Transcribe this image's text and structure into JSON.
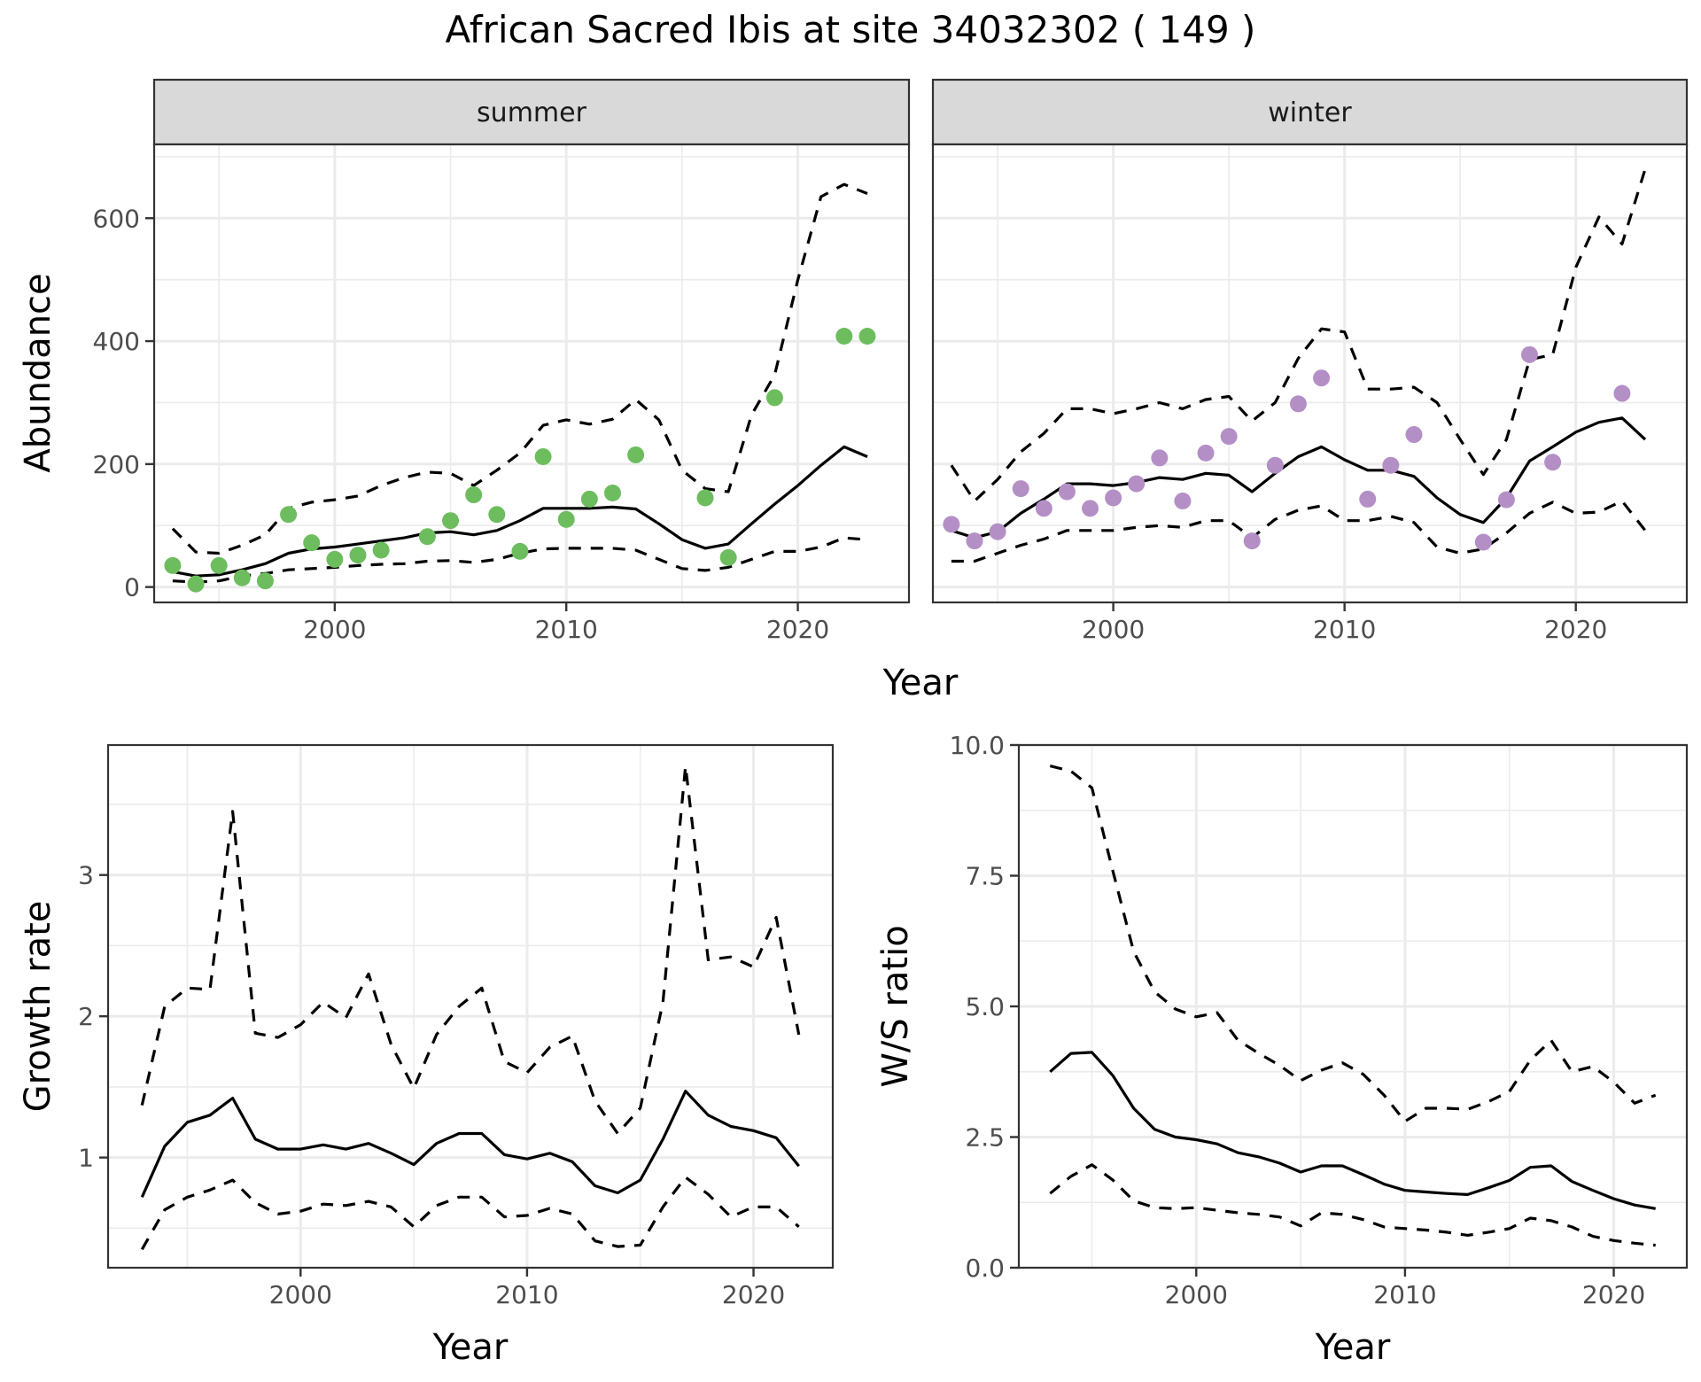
{
  "title": "African Sacred Ibis at site 34032302 ( 149 )",
  "colors": {
    "summer_points": "#6dbd5e",
    "winter_points": "#b48fc6",
    "line": "#000000",
    "grid": "#ebebeb",
    "strip_bg": "#d9d9d9",
    "panel_border": "#333333",
    "tick_text": "#4d4d4d"
  },
  "chart_data": [
    {
      "id": "abundance",
      "type": "line",
      "title": "African Sacred Ibis at site 34032302 ( 149 )",
      "xlabel": "Year",
      "ylabel": "Abundance",
      "xlim": [
        1992.2,
        2024.8
      ],
      "ylim": [
        -25,
        720
      ],
      "xticks": [
        2000,
        2010,
        2020
      ],
      "yticks": [
        0,
        200,
        400,
        600
      ],
      "grid": true,
      "facets": [
        {
          "strip": "summer",
          "years": [
            1993,
            1994,
            1995,
            1996,
            1997,
            1998,
            1999,
            2000,
            2001,
            2002,
            2003,
            2004,
            2005,
            2006,
            2007,
            2008,
            2009,
            2010,
            2011,
            2012,
            2013,
            2014,
            2015,
            2016,
            2017,
            2018,
            2019,
            2020,
            2021,
            2022,
            2023
          ],
          "series": [
            {
              "name": "mean",
              "style": "solid",
              "values": [
                25,
                18,
                20,
                28,
                38,
                55,
                62,
                65,
                70,
                75,
                80,
                88,
                90,
                85,
                92,
                108,
                128,
                128,
                128,
                130,
                127,
                103,
                77,
                63,
                70,
                103,
                135,
                165,
                198,
                228,
                212
              ]
            },
            {
              "name": "upper",
              "style": "dashed",
              "values": [
                95,
                57,
                55,
                68,
                85,
                128,
                138,
                142,
                148,
                165,
                178,
                187,
                185,
                165,
                190,
                218,
                263,
                272,
                265,
                273,
                305,
                272,
                190,
                160,
                155,
                280,
                345,
                500,
                635,
                655,
                640
              ]
            },
            {
              "name": "lower",
              "style": "dashed",
              "values": [
                10,
                8,
                10,
                18,
                22,
                28,
                30,
                32,
                35,
                37,
                38,
                42,
                43,
                40,
                45,
                55,
                62,
                63,
                63,
                63,
                60,
                45,
                30,
                27,
                32,
                45,
                58,
                58,
                65,
                80,
                77
              ]
            }
          ],
          "observed": {
            "years": [
              1993,
              1994,
              1995,
              1996,
              1997,
              1998,
              1999,
              2000,
              2001,
              2002,
              2004,
              2005,
              2006,
              2007,
              2008,
              2009,
              2010,
              2011,
              2012,
              2013,
              2016,
              2017,
              2019,
              2022,
              2023
            ],
            "values": [
              35,
              5,
              35,
              15,
              10,
              118,
              72,
              45,
              52,
              60,
              82,
              108,
              150,
              118,
              58,
              212,
              110,
              143,
              153,
              215,
              145,
              48,
              308,
              408,
              408
            ]
          }
        },
        {
          "strip": "winter",
          "years": [
            1993,
            1994,
            1995,
            1996,
            1997,
            1998,
            1999,
            2000,
            2001,
            2002,
            2003,
            2004,
            2005,
            2006,
            2007,
            2008,
            2009,
            2010,
            2011,
            2012,
            2013,
            2014,
            2015,
            2016,
            2017,
            2018,
            2019,
            2020,
            2021,
            2022,
            2023
          ],
          "series": [
            {
              "name": "mean",
              "style": "solid",
              "values": [
                92,
                80,
                90,
                120,
                143,
                168,
                168,
                165,
                170,
                178,
                175,
                185,
                182,
                155,
                185,
                212,
                228,
                207,
                190,
                190,
                180,
                145,
                118,
                105,
                145,
                205,
                228,
                252,
                268,
                275,
                240
              ]
            },
            {
              "name": "upper",
              "style": "dashed",
              "values": [
                198,
                140,
                175,
                220,
                250,
                290,
                290,
                282,
                290,
                300,
                290,
                305,
                310,
                270,
                300,
                372,
                420,
                415,
                322,
                322,
                325,
                300,
                240,
                183,
                240,
                370,
                378,
                520,
                602,
                558,
                680
              ]
            },
            {
              "name": "lower",
              "style": "dashed",
              "values": [
                42,
                42,
                55,
                68,
                78,
                92,
                92,
                92,
                97,
                100,
                97,
                108,
                108,
                80,
                110,
                125,
                132,
                108,
                108,
                115,
                105,
                65,
                55,
                62,
                88,
                120,
                138,
                120,
                122,
                140,
                92
              ]
            }
          ],
          "observed": {
            "years": [
              1993,
              1994,
              1995,
              1996,
              1997,
              1998,
              1999,
              2000,
              2001,
              2002,
              2003,
              2004,
              2005,
              2006,
              2007,
              2008,
              2009,
              2011,
              2012,
              2013,
              2016,
              2017,
              2018,
              2019,
              2022
            ],
            "values": [
              102,
              75,
              90,
              160,
              128,
              155,
              128,
              145,
              168,
              210,
              140,
              218,
              245,
              75,
              198,
              298,
              340,
              143,
              198,
              248,
              73,
              142,
              378,
              203,
              315
            ]
          }
        }
      ]
    },
    {
      "id": "growth",
      "type": "line",
      "title": "",
      "xlabel": "Year",
      "ylabel": "Growth rate",
      "xlim": [
        1991.5,
        2023.5
      ],
      "ylim": [
        0.22,
        3.92
      ],
      "xticks": [
        2000,
        2010,
        2020
      ],
      "yticks": [
        1,
        2,
        3
      ],
      "grid": true,
      "years": [
        1993,
        1994,
        1995,
        1996,
        1997,
        1998,
        1999,
        2000,
        2001,
        2002,
        2003,
        2004,
        2005,
        2006,
        2007,
        2008,
        2009,
        2010,
        2011,
        2012,
        2013,
        2014,
        2015,
        2016,
        2017,
        2018,
        2019,
        2020,
        2021,
        2022
      ],
      "series": [
        {
          "name": "mean",
          "style": "solid",
          "values": [
            0.72,
            1.08,
            1.25,
            1.3,
            1.42,
            1.13,
            1.06,
            1.06,
            1.09,
            1.06,
            1.1,
            1.03,
            0.95,
            1.1,
            1.17,
            1.17,
            1.02,
            0.99,
            1.03,
            0.97,
            0.8,
            0.75,
            0.84,
            1.13,
            1.47,
            1.3,
            1.22,
            1.19,
            1.14,
            0.94
          ]
        },
        {
          "name": "upper",
          "style": "dashed",
          "values": [
            1.37,
            2.07,
            2.2,
            2.19,
            3.45,
            1.88,
            1.85,
            1.94,
            2.1,
            1.99,
            2.3,
            1.8,
            1.49,
            1.87,
            2.07,
            2.2,
            1.68,
            1.6,
            1.78,
            1.86,
            1.4,
            1.17,
            1.35,
            2.1,
            3.77,
            2.4,
            2.42,
            2.35,
            2.7,
            1.87
          ]
        },
        {
          "name": "lower",
          "style": "dashed",
          "values": [
            0.35,
            0.63,
            0.72,
            0.77,
            0.84,
            0.68,
            0.6,
            0.62,
            0.67,
            0.66,
            0.69,
            0.65,
            0.51,
            0.66,
            0.72,
            0.72,
            0.58,
            0.59,
            0.64,
            0.6,
            0.41,
            0.37,
            0.38,
            0.65,
            0.86,
            0.74,
            0.58,
            0.65,
            0.65,
            0.51
          ]
        }
      ]
    },
    {
      "id": "ws_ratio",
      "type": "line",
      "title": "",
      "xlabel": "Year",
      "ylabel": "W/S ratio",
      "xlim": [
        1991.5,
        2023.5
      ],
      "ylim": [
        0,
        10
      ],
      "xticks": [
        2000,
        2010,
        2020
      ],
      "yticks": [
        0.0,
        2.5,
        5.0,
        7.5,
        10.0
      ],
      "ytick_labels": [
        "0.0",
        "2.5",
        "5.0",
        "7.5",
        "10.0"
      ],
      "grid": true,
      "years": [
        1993,
        1994,
        1995,
        1996,
        1997,
        1998,
        1999,
        2000,
        2001,
        2002,
        2003,
        2004,
        2005,
        2006,
        2007,
        2008,
        2009,
        2010,
        2011,
        2012,
        2013,
        2014,
        2015,
        2016,
        2017,
        2018,
        2019,
        2020,
        2021,
        2022
      ],
      "series": [
        {
          "name": "mean",
          "style": "solid",
          "values": [
            3.75,
            4.1,
            4.12,
            3.68,
            3.05,
            2.65,
            2.5,
            2.45,
            2.37,
            2.2,
            2.12,
            2.0,
            1.83,
            1.95,
            1.95,
            1.78,
            1.6,
            1.48,
            1.45,
            1.42,
            1.4,
            1.53,
            1.67,
            1.92,
            1.95,
            1.65,
            1.48,
            1.32,
            1.2,
            1.13
          ]
        },
        {
          "name": "upper",
          "style": "dashed",
          "values": [
            9.6,
            9.5,
            9.18,
            7.6,
            6.05,
            5.28,
            4.95,
            4.8,
            4.88,
            4.35,
            4.1,
            3.87,
            3.58,
            3.78,
            3.92,
            3.7,
            3.3,
            2.8,
            3.05,
            3.05,
            3.03,
            3.18,
            3.37,
            3.97,
            4.35,
            3.75,
            3.85,
            3.55,
            3.15,
            3.3
          ]
        },
        {
          "name": "lower",
          "style": "dashed",
          "values": [
            1.42,
            1.75,
            1.97,
            1.68,
            1.28,
            1.15,
            1.13,
            1.15,
            1.1,
            1.05,
            1.02,
            0.97,
            0.8,
            1.05,
            1.02,
            0.92,
            0.78,
            0.75,
            0.72,
            0.68,
            0.62,
            0.68,
            0.75,
            0.95,
            0.9,
            0.78,
            0.6,
            0.52,
            0.47,
            0.43
          ]
        }
      ]
    }
  ]
}
